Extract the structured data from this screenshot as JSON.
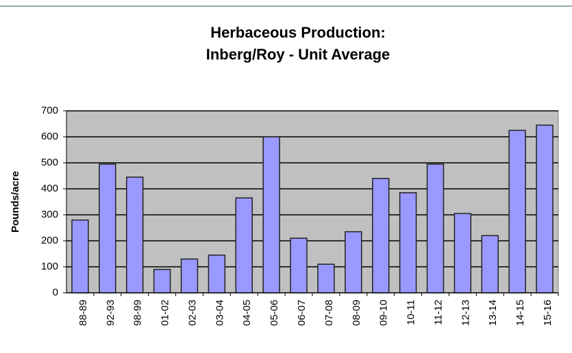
{
  "chart_data": {
    "type": "bar",
    "title": [
      "Herbaceous Production:",
      "Inberg/Roy - Unit Average"
    ],
    "ylabel": "Pounds/acre",
    "categories": [
      "88-89",
      "92-93",
      "98-99",
      "01-02",
      "02-03",
      "03-04",
      "04-05",
      "05-06",
      "06-07",
      "07-08",
      "08-09",
      "09-10",
      "10-11",
      "11-12",
      "12-13",
      "13-14",
      "14-15",
      "15-16"
    ],
    "values": [
      280,
      495,
      445,
      90,
      130,
      145,
      365,
      600,
      210,
      110,
      235,
      440,
      385,
      495,
      305,
      220,
      625,
      645
    ],
    "color": "#9999ff",
    "ylim": [
      0,
      700
    ],
    "yticks": [
      0,
      100,
      200,
      300,
      400,
      500,
      600,
      700
    ],
    "grid": true
  }
}
